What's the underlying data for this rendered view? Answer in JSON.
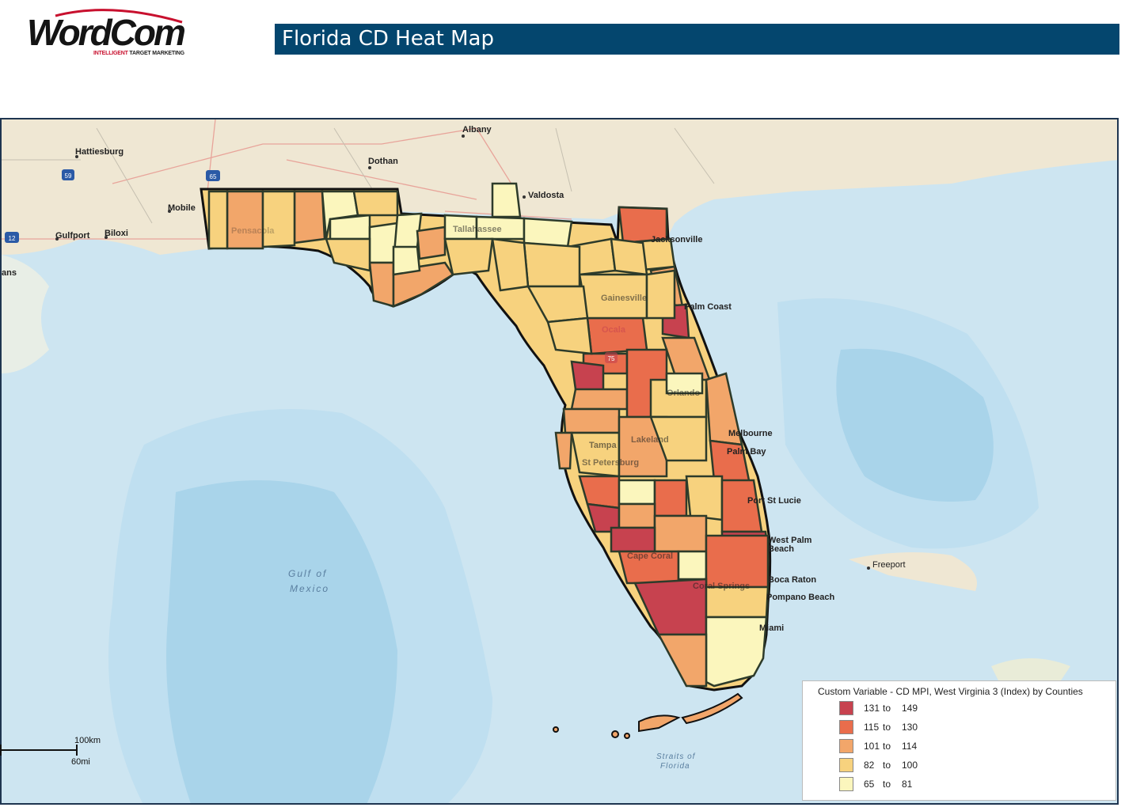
{
  "logo": {
    "brand": "WordCom",
    "brand_a": "Word",
    "brand_b": "Com",
    "tagline_a": "INTELLIGENT",
    "tagline_b": " TARGET MARKETING"
  },
  "header": {
    "title": "Florida CD Heat Map"
  },
  "map": {
    "cities": [
      "Albany",
      "Hattiesburg",
      "Dothan",
      "Valdosta",
      "Mobile",
      "Gulfport",
      "Biloxi",
      "ans",
      "Pensacola",
      "Tallahassee",
      "Jacksonville",
      "Gainesville",
      "Palm Coast",
      "Ocala",
      "Orlando",
      "Tampa",
      "Lakeland",
      "St Petersburg",
      "Melbourne",
      "Palm Bay",
      "Port St Lucie",
      "West Palm",
      "Beach",
      "Cape Coral",
      "Coral Springs",
      "Boca Raton",
      "Pompano Beach",
      "Miami",
      "Freeport"
    ],
    "water": {
      "gulf_1": "Gulf of",
      "gulf_2": "Mexico",
      "straits_1": "Straits of",
      "straits_2": "Florida"
    },
    "shields": [
      "59",
      "65",
      "12",
      "75"
    ]
  },
  "legend": {
    "title": "Custom Variable - CD MPI, West Virginia 3 (Index) by Counties",
    "ranges": [
      {
        "low": "131",
        "sep": "to",
        "high": "149",
        "color": "#c7424f"
      },
      {
        "low": "115",
        "sep": "to",
        "high": "130",
        "color": "#e96d4c"
      },
      {
        "low": "101",
        "sep": "to",
        "high": "114",
        "color": "#f2a66a"
      },
      {
        "low": "82",
        "sep": "to",
        "high": "100",
        "color": "#f7d27e"
      },
      {
        "low": "65",
        "sep": "to",
        "high": "81",
        "color": "#fbf6bd"
      }
    ]
  },
  "scale_bar": {
    "km": "100km",
    "mi": "60mi"
  }
}
